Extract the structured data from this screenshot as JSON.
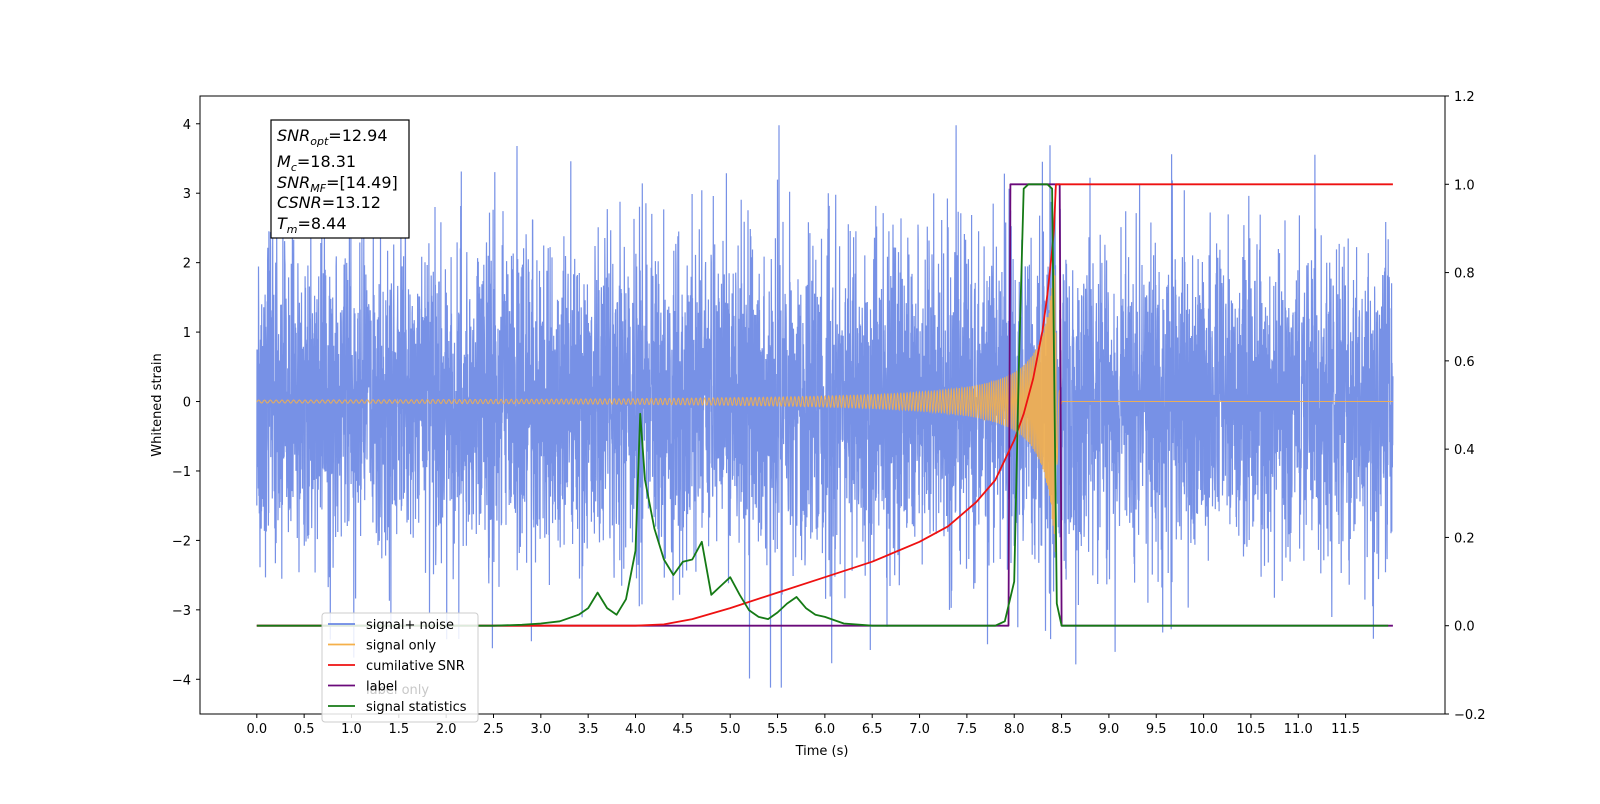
{
  "chart_data": {
    "type": "line",
    "xlabel": "Time (s)",
    "ylabel": "Whitened strain",
    "ylabel_right": "",
    "xlim": [
      -0.6,
      12.55
    ],
    "ylim": [
      -4.5,
      4.4
    ],
    "ylim_right": [
      -0.2,
      1.2
    ],
    "x_ticks": [
      0.0,
      0.5,
      1.0,
      1.5,
      2.0,
      2.5,
      3.0,
      3.5,
      4.0,
      4.5,
      5.0,
      5.5,
      6.0,
      6.5,
      7.0,
      7.5,
      8.0,
      8.5,
      9.0,
      9.5,
      10.0,
      10.5,
      11.0,
      11.5
    ],
    "x_tick_labels": [
      "0.0",
      "0.5",
      "1.0",
      "1.5",
      "2.0",
      "2.5",
      "3.0",
      "3.5",
      "4.0",
      "4.5",
      "5.0",
      "5.5",
      "6.0",
      "6.5",
      "7.0",
      "7.5",
      "8.0",
      "8.5",
      "9.0",
      "9.5",
      "10.0",
      "10.5",
      "11.0",
      "11.5"
    ],
    "y_ticks": [
      -4,
      -3,
      -2,
      -1,
      0,
      1,
      2,
      3,
      4
    ],
    "y_tick_labels": [
      "−4",
      "−3",
      "−2",
      "−1",
      "0",
      "1",
      "2",
      "3",
      "4"
    ],
    "y_ticks_right": [
      -0.2,
      0.0,
      0.2,
      0.4,
      0.6,
      0.8,
      1.0,
      1.2
    ],
    "y_tick_labels_right": [
      "−0.2",
      "0.0",
      "0.2",
      "0.4",
      "0.6",
      "0.8",
      "1.0",
      "1.2"
    ],
    "grid": false,
    "legend_position": "lower-left",
    "series": [
      {
        "name": "signal+ noise",
        "axis": "left",
        "color": "#6b88e4",
        "kind": "noise",
        "x_range": [
          0.0,
          12.0
        ],
        "std": 1.2,
        "peak_max": 3.98,
        "peak_min": -4.12
      },
      {
        "name": "signal only",
        "axis": "left",
        "color": "#f5b04a",
        "kind": "chirp",
        "x_range": [
          0.0,
          12.0
        ],
        "merger_time": 8.44,
        "peak_amplitude": 2.3,
        "ringdown_end": 8.5
      },
      {
        "name": "cumilative SNR",
        "axis": "right",
        "color": "#ee1111",
        "x": [
          0.0,
          3.0,
          4.0,
          4.3,
          4.6,
          5.0,
          5.5,
          6.0,
          6.5,
          7.0,
          7.3,
          7.6,
          7.8,
          8.0,
          8.1,
          8.2,
          8.3,
          8.35,
          8.4,
          8.42,
          8.44,
          8.5,
          9.0,
          10.0,
          11.0,
          12.0
        ],
        "y": [
          0.0,
          0.0,
          0.0,
          0.003,
          0.015,
          0.04,
          0.075,
          0.11,
          0.145,
          0.19,
          0.225,
          0.28,
          0.33,
          0.42,
          0.48,
          0.56,
          0.67,
          0.75,
          0.85,
          0.9,
          1.0,
          1.0,
          1.0,
          1.0,
          1.0,
          1.0
        ]
      },
      {
        "name": "label",
        "axis": "right",
        "color": "#6a0a7a",
        "x": [
          0.0,
          7.94,
          7.96,
          8.48,
          8.5,
          12.0
        ],
        "y": [
          0.0,
          0.0,
          1.0,
          1.0,
          0.0,
          0.0
        ]
      },
      {
        "name": "signal statistics",
        "axis": "right",
        "color": "#157a15",
        "x": [
          0.0,
          2.5,
          2.8,
          3.0,
          3.2,
          3.4,
          3.5,
          3.6,
          3.7,
          3.8,
          3.9,
          4.0,
          4.05,
          4.1,
          4.2,
          4.3,
          4.4,
          4.5,
          4.6,
          4.7,
          4.8,
          4.9,
          5.0,
          5.1,
          5.2,
          5.3,
          5.4,
          5.5,
          5.6,
          5.7,
          5.8,
          5.9,
          6.0,
          6.2,
          6.5,
          7.0,
          7.5,
          7.8,
          7.9,
          8.0,
          8.05,
          8.1,
          8.15,
          8.2,
          8.3,
          8.35,
          8.4,
          8.45,
          8.5,
          9.0,
          10.0,
          11.0,
          11.95
        ],
        "y": [
          0.0,
          0.0,
          0.002,
          0.005,
          0.01,
          0.025,
          0.04,
          0.075,
          0.04,
          0.025,
          0.06,
          0.17,
          0.48,
          0.33,
          0.22,
          0.15,
          0.115,
          0.145,
          0.15,
          0.19,
          0.07,
          0.09,
          0.11,
          0.07,
          0.035,
          0.02,
          0.015,
          0.03,
          0.05,
          0.065,
          0.04,
          0.025,
          0.02,
          0.005,
          0.0,
          0.0,
          0.0,
          0.0,
          0.01,
          0.1,
          0.6,
          0.99,
          1.0,
          1.0,
          1.0,
          1.0,
          0.99,
          0.05,
          0.0,
          0.0,
          0.0,
          0.0,
          0.0
        ]
      }
    ],
    "annotations": {
      "snr_opt": {
        "base": "SNR",
        "sub": "opt",
        "value": "=12.94"
      },
      "mc": {
        "base": "M",
        "sub": "c",
        "value": "=18.31"
      },
      "snr_mf": {
        "base": "SNR",
        "sub": "MF",
        "value": "=[14.49]"
      },
      "csnr": {
        "base": "CSNR",
        "sub": "",
        "value": "=13.12"
      },
      "tm": {
        "base": "T",
        "sub": "m",
        "value": "=8.44"
      }
    },
    "legend_overlap_text": "label only"
  }
}
